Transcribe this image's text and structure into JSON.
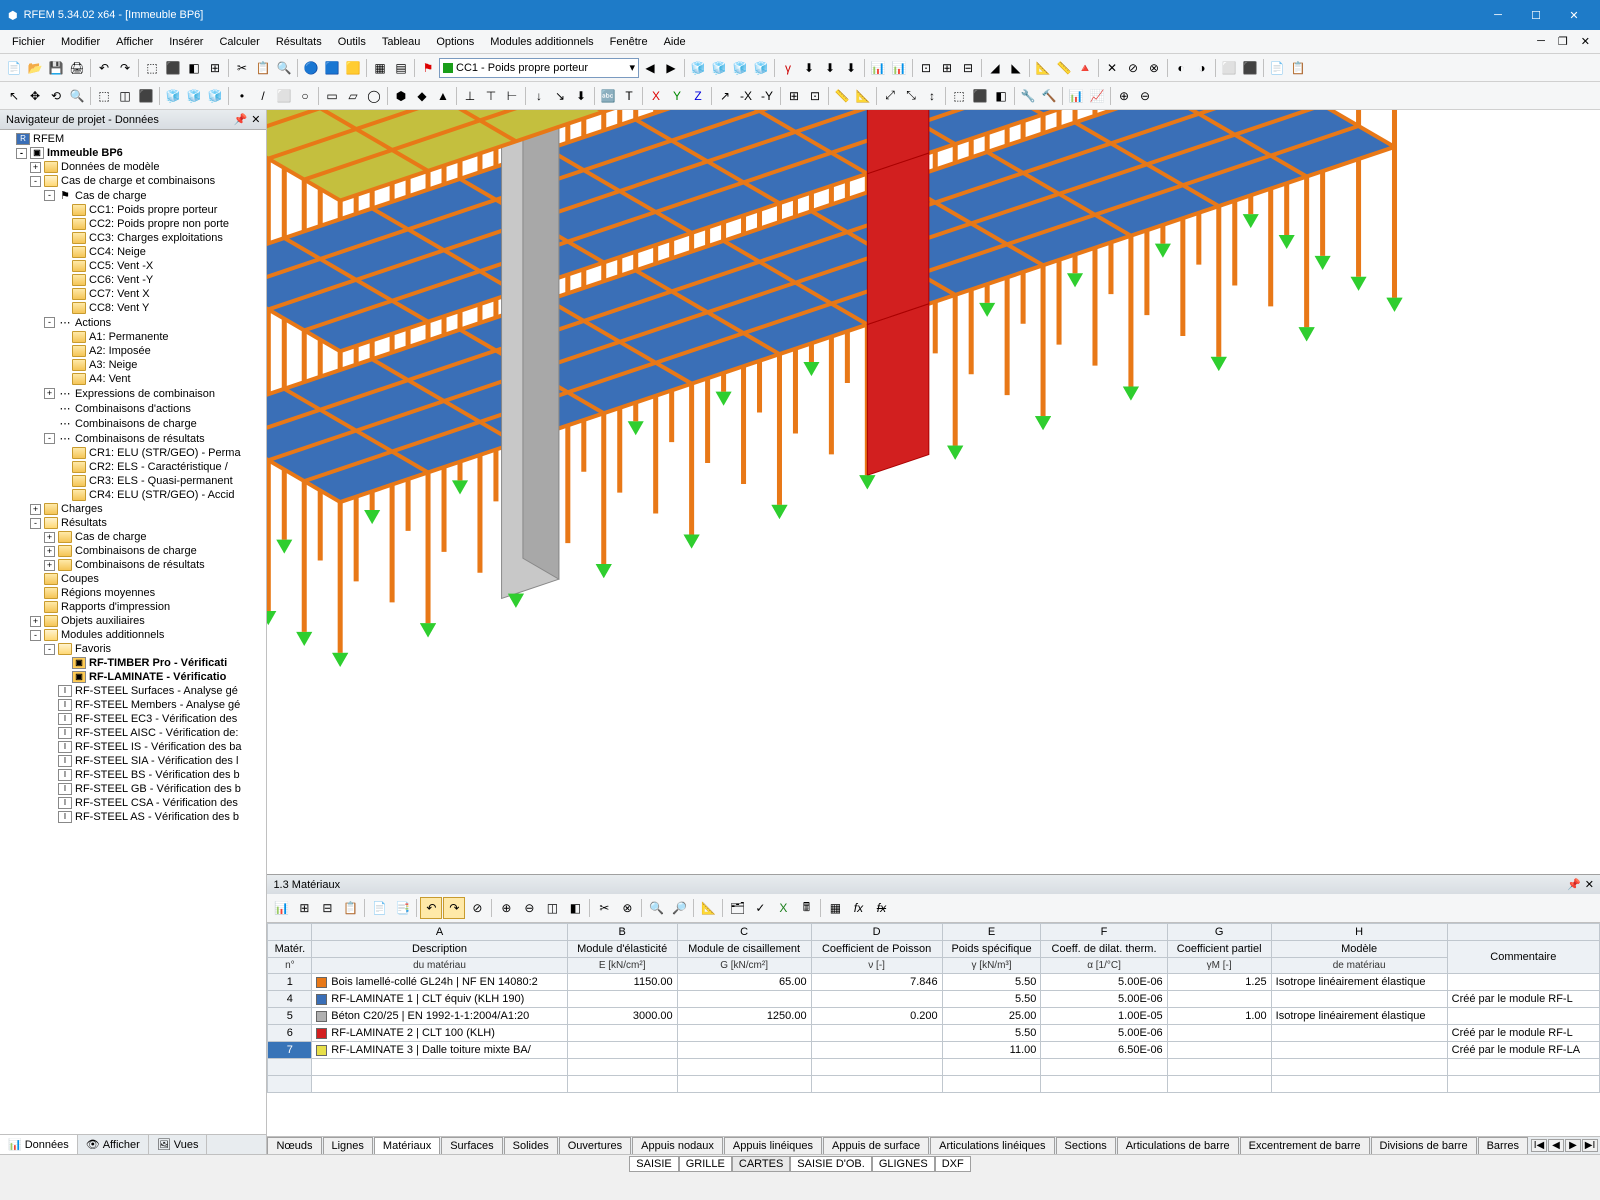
{
  "title": "RFEM 5.34.02 x64 - [Immeuble BP6]",
  "menu": [
    "Fichier",
    "Modifier",
    "Afficher",
    "Insérer",
    "Calculer",
    "Résultats",
    "Outils",
    "Tableau",
    "Options",
    "Modules additionnels",
    "Fenêtre",
    "Aide"
  ],
  "loadcase": "CC1 - Poids propre porteur",
  "nav_title": "Navigateur de projet - Données",
  "root": "RFEM",
  "model_name": "Immeuble BP6",
  "tree": {
    "donnees_modele": "Données de modèle",
    "cas_comb": "Cas de charge et combinaisons",
    "cas_charge": "Cas de charge",
    "cc": [
      "CC1: Poids propre porteur",
      "CC2: Poids propre non porte",
      "CC3: Charges exploitations",
      "CC4: Neige",
      "CC5: Vent -X",
      "CC6: Vent -Y",
      "CC7: Vent X",
      "CC8: Vent Y"
    ],
    "actions": "Actions",
    "a": [
      "A1: Permanente",
      "A2: Imposée",
      "A3: Neige",
      "A4: Vent"
    ],
    "expr_comb": "Expressions de combinaison",
    "comb_actions": "Combinaisons d'actions",
    "comb_charge": "Combinaisons de charge",
    "comb_result": "Combinaisons de résultats",
    "cr": [
      "CR1: ELU (STR/GEO) - Perma",
      "CR2: ELS - Caractéristique /",
      "CR3: ELS - Quasi-permanent",
      "CR4: ELU (STR/GEO) - Accid"
    ],
    "charges": "Charges",
    "resultats": "Résultats",
    "r_cas": "Cas de charge",
    "r_comb_c": "Combinaisons de charge",
    "r_comb_r": "Combinaisons de résultats",
    "coupes": "Coupes",
    "regions": "Régions moyennes",
    "rapports": "Rapports d'impression",
    "objets": "Objets auxiliaires",
    "modules": "Modules additionnels",
    "favoris": "Favoris",
    "fav": [
      "RF-TIMBER Pro - Vérificati",
      "RF-LAMINATE - Vérificatio"
    ],
    "steel": [
      "RF-STEEL Surfaces - Analyse gé",
      "RF-STEEL Members - Analyse gé",
      "RF-STEEL EC3 - Vérification des",
      "RF-STEEL AISC - Vérification de:",
      "RF-STEEL IS - Vérification des ba",
      "RF-STEEL SIA - Vérification des l",
      "RF-STEEL BS - Vérification des b",
      "RF-STEEL GB - Vérification des b",
      "RF-STEEL CSA - Vérification des",
      "RF-STEEL AS - Vérification des b"
    ]
  },
  "nav_tabs": [
    "Données",
    "Afficher",
    "Vues"
  ],
  "tablepanel_title": "1.3 Matériaux",
  "cols": {
    "a": "A",
    "b": "B",
    "c": "C",
    "d": "D",
    "e": "E",
    "f": "F",
    "g": "G",
    "h": "H"
  },
  "head1": {
    "mat": "Matér.",
    "desc": "Description",
    "e": "Module d'élasticité",
    "g": "Module de cisaillement",
    "nu": "Coefficient de Poisson",
    "gamma": "Poids spécifique",
    "alpha": "Coeff. de dilat. therm.",
    "gm": "Coefficient partiel",
    "modele": "Modèle",
    "comm": "Commentaire"
  },
  "head2": {
    "n": "n°",
    "dm": "du matériau",
    "e": "E [kN/cm²]",
    "g": "G [kN/cm²]",
    "nu": "ν [-]",
    "gamma": "γ [kN/m³]",
    "alpha": "α [1/°C]",
    "gm": "γM [-]",
    "dm2": "de matériau"
  },
  "rows": [
    {
      "n": "1",
      "col": "#e87817",
      "desc": "Bois lamellé-collé GL24h | NF EN 14080:2",
      "E": "1150.00",
      "G": "65.00",
      "nu": "7.846",
      "g": "5.50",
      "a": "5.00E-06",
      "gm": "1.25",
      "mod": "Isotrope linéairement élastique",
      "c": ""
    },
    {
      "n": "4",
      "col": "#3a6fb7",
      "desc": "RF-LAMINATE 1 | CLT équiv (KLH 190)",
      "E": "",
      "G": "",
      "nu": "",
      "g": "5.50",
      "a": "5.00E-06",
      "gm": "",
      "mod": "",
      "c": "Créé par le module RF-L"
    },
    {
      "n": "5",
      "col": "#b0b0b0",
      "desc": "Béton C20/25 | EN 1992-1-1:2004/A1:20",
      "E": "3000.00",
      "G": "1250.00",
      "nu": "0.200",
      "g": "25.00",
      "a": "1.00E-05",
      "gm": "1.00",
      "mod": "Isotrope linéairement élastique",
      "c": ""
    },
    {
      "n": "6",
      "col": "#d21f1f",
      "desc": "RF-LAMINATE 2 | CLT 100 (KLH)",
      "E": "",
      "G": "",
      "nu": "",
      "g": "5.50",
      "a": "5.00E-06",
      "gm": "",
      "mod": "",
      "c": "Créé par le module RF-L"
    },
    {
      "n": "7",
      "col": "#e7df4a",
      "desc": "RF-LAMINATE 3 | Dalle toiture mixte BA/",
      "E": "",
      "G": "",
      "nu": "",
      "g": "11.00",
      "a": "6.50E-06",
      "gm": "",
      "mod": "",
      "c": "Créé par le module RF-LA",
      "sel": true
    }
  ],
  "bottom_tabs": [
    "Nœuds",
    "Lignes",
    "Matériaux",
    "Surfaces",
    "Solides",
    "Ouvertures",
    "Appuis nodaux",
    "Appuis linéiques",
    "Appuis de surface",
    "Articulations linéiques",
    "Sections",
    "Articulations de barre",
    "Excentrement de barre",
    "Divisions de barre",
    "Barres"
  ],
  "status": [
    "SAISIE",
    "GRILLE",
    "CARTES",
    "SAISIE D'OB.",
    "GLIGNES",
    "DXF"
  ],
  "colors": {
    "frame": "#e87817",
    "floor": "#3a6fb7",
    "roof": "#c4bf3e",
    "roof_stroke": "#a8a030",
    "concrete": "#b8b8b8",
    "red": "#d21f1f",
    "support": "#2fce2f"
  }
}
